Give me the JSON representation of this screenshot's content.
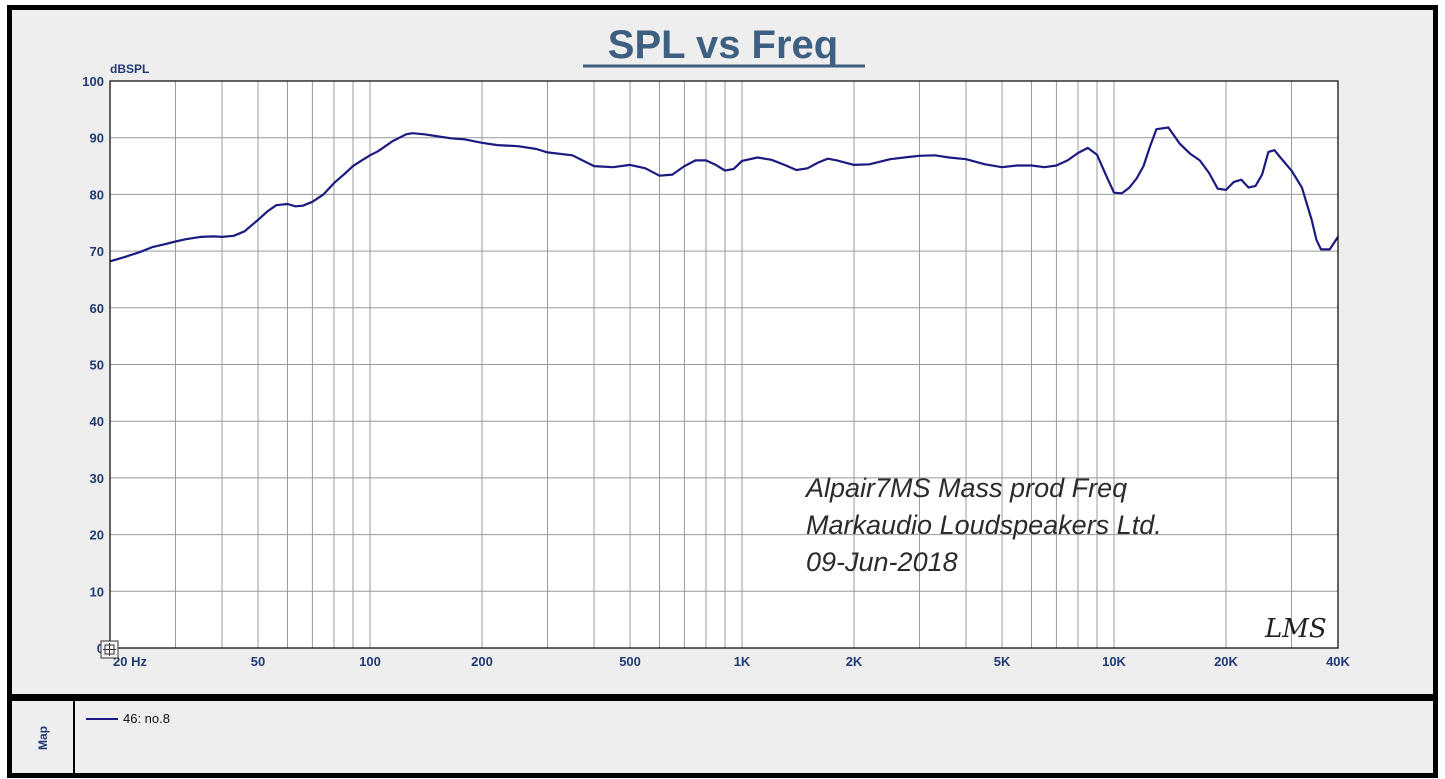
{
  "chart_data": {
    "type": "line",
    "title": "SPL vs Freq",
    "ylabel": "dBSPL",
    "xlabel": "",
    "x_scale": "log",
    "xlim": [
      20,
      40000
    ],
    "ylim": [
      0,
      100
    ],
    "grid": true,
    "y_ticks": [
      "100",
      "90",
      "80",
      "70",
      "60",
      "50",
      "40",
      "30",
      "20",
      "10",
      "0"
    ],
    "x_ticks": [
      {
        "value": 20,
        "label": "20 Hz"
      },
      {
        "value": 50,
        "label": "50"
      },
      {
        "value": 100,
        "label": "100"
      },
      {
        "value": 200,
        "label": "200"
      },
      {
        "value": 500,
        "label": "500"
      },
      {
        "value": 1000,
        "label": "1K"
      },
      {
        "value": 2000,
        "label": "2K"
      },
      {
        "value": 5000,
        "label": "5K"
      },
      {
        "value": 10000,
        "label": "10K"
      },
      {
        "value": 20000,
        "label": "20K"
      },
      {
        "value": 40000,
        "label": "40K"
      }
    ],
    "series": [
      {
        "name": "46: no.8",
        "color": "#1a1a80",
        "x": [
          20,
          22,
          24,
          26,
          28,
          30,
          32,
          35,
          38,
          40,
          43,
          46,
          50,
          53,
          56,
          60,
          63,
          66,
          70,
          75,
          80,
          85,
          90,
          95,
          100,
          105,
          110,
          115,
          120,
          125,
          130,
          140,
          150,
          165,
          180,
          200,
          220,
          250,
          280,
          300,
          350,
          400,
          450,
          500,
          550,
          600,
          650,
          700,
          750,
          800,
          850,
          900,
          950,
          1000,
          1100,
          1200,
          1300,
          1400,
          1500,
          1600,
          1700,
          1800,
          2000,
          2200,
          2500,
          2800,
          3000,
          3300,
          3600,
          4000,
          4500,
          5000,
          5500,
          6000,
          6500,
          7000,
          7500,
          8000,
          8500,
          9000,
          9500,
          10000,
          10500,
          11000,
          11500,
          12000,
          12500,
          13000,
          14000,
          15000,
          16000,
          17000,
          18000,
          19000,
          20000,
          21000,
          22000,
          23000,
          24000,
          25000,
          26000,
          27000,
          28000,
          30000,
          32000,
          34000,
          35000,
          36000,
          38000,
          40000
        ],
        "values": [
          68.2,
          69.0,
          69.8,
          70.7,
          71.2,
          71.7,
          72.1,
          72.5,
          72.6,
          72.5,
          72.7,
          73.5,
          75.5,
          77.0,
          78.1,
          78.3,
          77.9,
          78.0,
          78.7,
          80.0,
          82.0,
          83.5,
          85.0,
          86.0,
          86.9,
          87.6,
          88.5,
          89.4,
          90.0,
          90.6,
          90.8,
          90.6,
          90.3,
          89.9,
          89.7,
          89.1,
          88.7,
          88.5,
          88.0,
          87.4,
          86.9,
          85.0,
          84.8,
          85.2,
          84.6,
          83.3,
          83.5,
          85.0,
          86.0,
          86.0,
          85.2,
          84.2,
          84.5,
          85.9,
          86.5,
          86.1,
          85.2,
          84.3,
          84.6,
          85.6,
          86.3,
          86.0,
          85.2,
          85.3,
          86.2,
          86.6,
          86.8,
          86.9,
          86.5,
          86.2,
          85.3,
          84.8,
          85.1,
          85.1,
          84.8,
          85.1,
          86.0,
          87.3,
          88.2,
          87.0,
          83.5,
          80.3,
          80.2,
          81.2,
          82.8,
          85.0,
          88.5,
          91.5,
          91.8,
          89.0,
          87.2,
          86.0,
          83.8,
          81.0,
          80.8,
          82.2,
          82.6,
          81.2,
          81.5,
          83.5,
          87.5,
          87.8,
          86.5,
          84.2,
          81.2,
          75.5,
          72.0,
          70.3,
          70.3,
          72.5
        ]
      }
    ],
    "annotations": [
      "Alpair7MS Mass prod Freq",
      "Markaudio Loudspeakers Ltd.",
      "09-Jun-2018"
    ],
    "watermark": "LMS",
    "legend_position": "bottom-left"
  },
  "legend": {
    "side_label": "Map",
    "entry_label": "46: no.8"
  },
  "colors": {
    "background": "#ffffff",
    "panel": "#eeeeee",
    "frame": "#000000",
    "grid": "#9a9a9a",
    "trace": "#1a1a80",
    "title": "#3d5f82",
    "ticks": "#203a73"
  }
}
